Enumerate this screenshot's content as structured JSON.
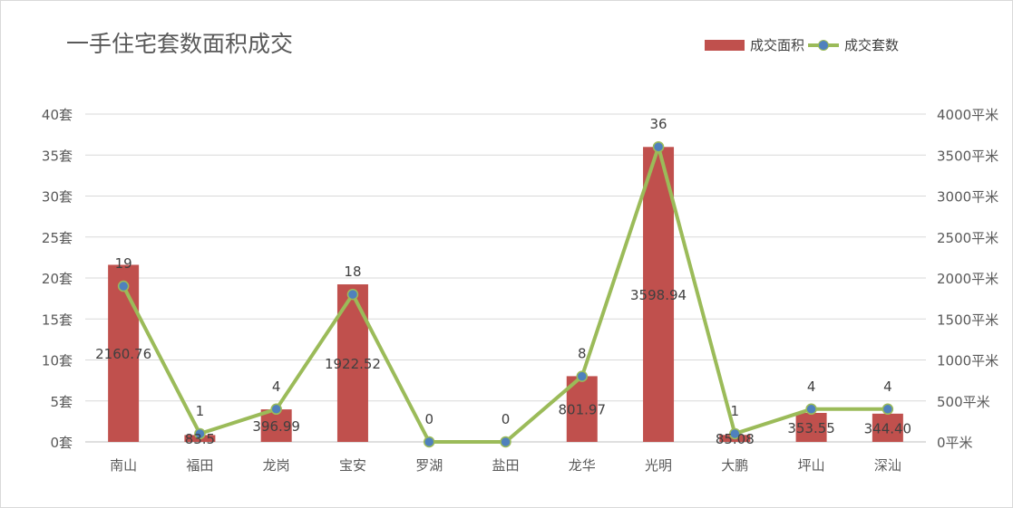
{
  "chart_data": {
    "type": "bar+line",
    "title": "一手住宅套数面积成交",
    "categories": [
      "南山",
      "福田",
      "龙岗",
      "宝安",
      "罗湖",
      "盐田",
      "龙华",
      "光明",
      "大鹏",
      "坪山",
      "深汕"
    ],
    "series": [
      {
        "name": "成交面积",
        "type": "bar",
        "axis": "right",
        "values": [
          2160.76,
          83.5,
          396.99,
          1922.52,
          0,
          0,
          801.97,
          3598.94,
          85.08,
          353.55,
          344.4
        ],
        "labels": [
          "2160.76",
          "83.5",
          "396.99",
          "1922.52",
          "",
          "",
          "801.97",
          "3598.94",
          "85.08",
          "353.55",
          "344.40"
        ],
        "color": "#c0504d"
      },
      {
        "name": "成交套数",
        "type": "line",
        "axis": "left",
        "values": [
          19,
          1,
          4,
          18,
          0,
          0,
          8,
          36,
          1,
          4,
          4
        ],
        "labels": [
          "19",
          "1",
          "4",
          "18",
          "0",
          "0",
          "8",
          "36",
          "1",
          "4",
          "4"
        ],
        "color": "#9bbb59",
        "marker_color": "#4f81bd"
      }
    ],
    "y_left": {
      "ylim": [
        0,
        40
      ],
      "ticks": [
        0,
        5,
        10,
        15,
        20,
        25,
        30,
        35,
        40
      ],
      "tick_labels": [
        "0套",
        "5套",
        "10套",
        "15套",
        "20套",
        "25套",
        "30套",
        "35套",
        "40套"
      ]
    },
    "y_right": {
      "ylim": [
        0,
        4000
      ],
      "ticks": [
        0,
        500,
        1000,
        1500,
        2000,
        2500,
        3000,
        3500,
        4000
      ],
      "tick_labels": [
        "0平米",
        "500平米",
        "1000平米",
        "1500平米",
        "2000平米",
        "2500平米",
        "3000平米",
        "3500平米",
        "4000平米"
      ]
    },
    "grid": true,
    "legend_position": "top-right"
  }
}
